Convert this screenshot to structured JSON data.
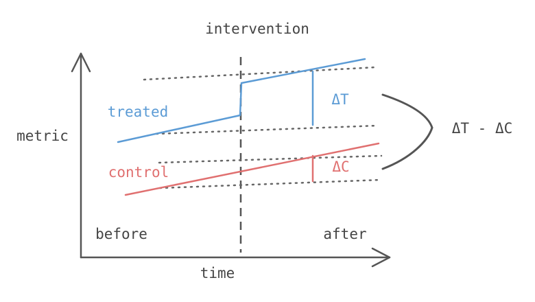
{
  "labels": {
    "intervention": "intervention",
    "metric": "metric",
    "time": "time",
    "before": "before",
    "after": "after",
    "treated": "treated",
    "control": "control",
    "delta_t": "ΔT",
    "delta_c": "ΔC",
    "difference": "ΔT - ΔC"
  },
  "colors": {
    "treated": "#5b9bd5",
    "control": "#e07070",
    "axis": "#555555",
    "dotted": "#666666"
  }
}
